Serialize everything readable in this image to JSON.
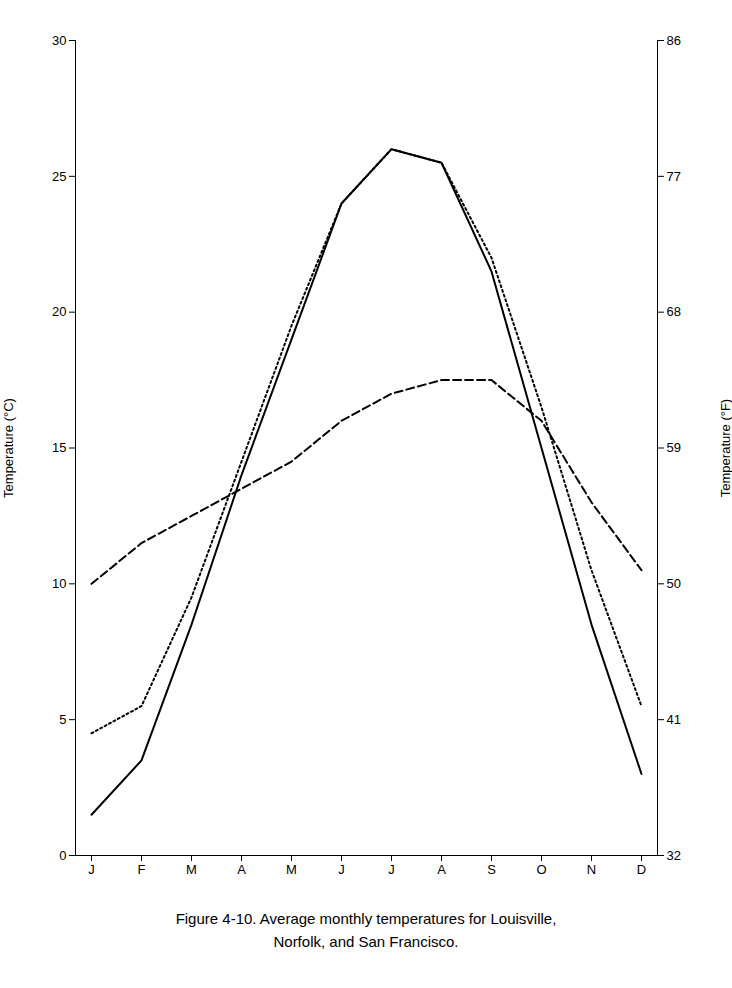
{
  "chart_data": {
    "type": "line",
    "categories": [
      "J",
      "F",
      "M",
      "A",
      "M",
      "J",
      "J",
      "A",
      "S",
      "O",
      "N",
      "D"
    ],
    "series": [
      {
        "color": "black",
        "line_style": "solid",
        "values": [
          1.5,
          3.5,
          8.5,
          14.0,
          19.0,
          24.0,
          26.0,
          25.5,
          21.5,
          15.0,
          8.5,
          3.0
        ]
      },
      {
        "color": "black",
        "line_style": "dotted",
        "values": [
          4.5,
          5.5,
          9.5,
          14.5,
          19.5,
          24.0,
          26.0,
          25.5,
          22.0,
          16.5,
          10.5,
          5.5
        ]
      },
      {
        "color": "black",
        "line_style": "dashed",
        "values": [
          10.0,
          11.5,
          12.5,
          13.5,
          14.5,
          16.0,
          17.0,
          17.5,
          17.5,
          16.0,
          13.0,
          10.5
        ]
      }
    ],
    "ylabel": "Temperature (°C)",
    "y2label": "Temperature (°F)",
    "ylim": [
      0,
      30
    ],
    "yticks": [
      0,
      5,
      10,
      15,
      20,
      25,
      30
    ],
    "y2lim": [
      32,
      86
    ],
    "y2ticks": [
      32,
      41,
      50,
      59,
      68,
      77,
      86
    ],
    "caption": [
      "Figure 4-10. Average monthly temperatures for Louisville,",
      "Norfolk, and San Francisco."
    ],
    "grid": false
  }
}
